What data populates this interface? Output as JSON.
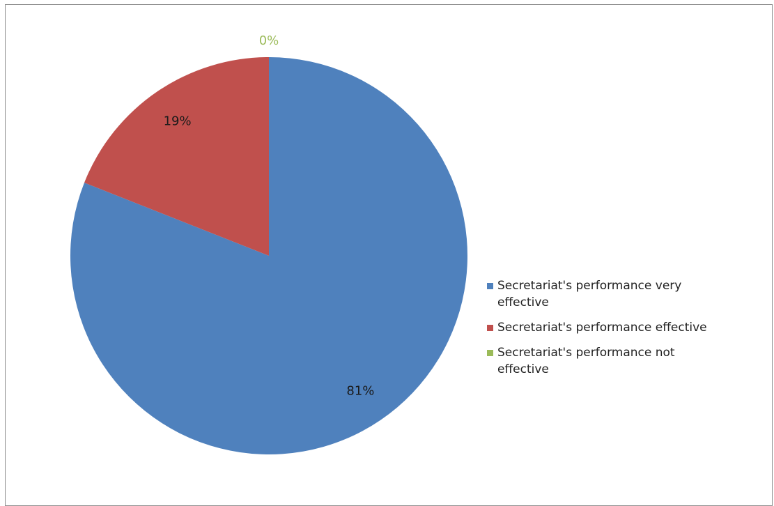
{
  "chart_data": {
    "type": "pie",
    "slices": [
      {
        "label": "Secretariat's performance very effective",
        "value": 81,
        "value_label": "81%",
        "color": "#4f81bd"
      },
      {
        "label": "Secretariat's performance effective",
        "value": 19,
        "value_label": "19%",
        "color": "#c0504d"
      },
      {
        "label": "Secretariat's performance not effective",
        "value": 0,
        "value_label": "0%",
        "color": "#9bbb59"
      }
    ],
    "legend_position": "right",
    "data_labels": true
  }
}
